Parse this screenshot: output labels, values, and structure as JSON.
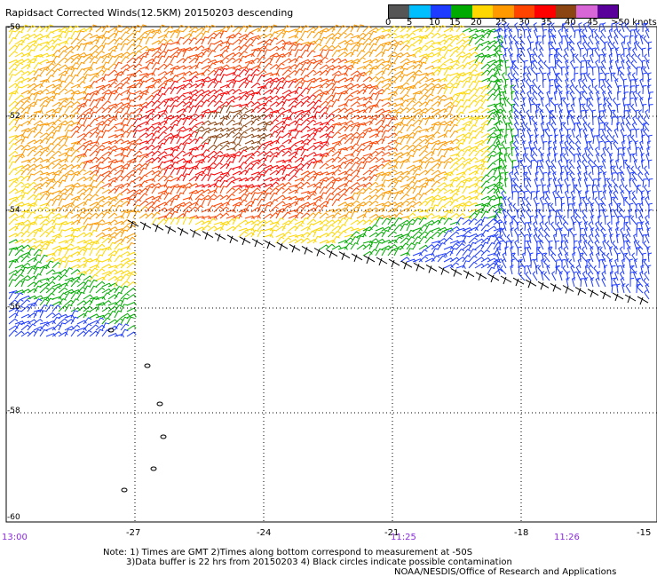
{
  "title": "Rapidsact Corrected Winds(12.5KM) 20150203 descending",
  "legend": {
    "unit": ">50 knots",
    "ticks": [
      "0",
      "5",
      "10",
      "15",
      "20",
      "25",
      "30",
      "35",
      "40",
      "45"
    ],
    "colors": [
      "#555555",
      "#00bfff",
      "#1e3cff",
      "#00aa00",
      "#ffd700",
      "#ff9900",
      "#ff4400",
      "#ff0000",
      "#8b4513",
      "#d966d6",
      "#5a009a"
    ]
  },
  "lat_labels": [
    "-50",
    "-52",
    "-54",
    "-56",
    "-58",
    "-60"
  ],
  "lon_labels": [
    "-27",
    "-24",
    "-21",
    "-18",
    "-15"
  ],
  "left_edge_label": "13:00",
  "time_labels": [
    "11:25",
    "11:26"
  ],
  "notes": {
    "line1": "Note: 1) Times are GMT 2)Times along bottom correspond to measurement at -50S",
    "line2": "3)Data buffer is 22 hrs from 20150203 4) Black circles indicate possible contamination",
    "line3": "NOAA/NESDIS/Office of Research and Applications"
  }
}
